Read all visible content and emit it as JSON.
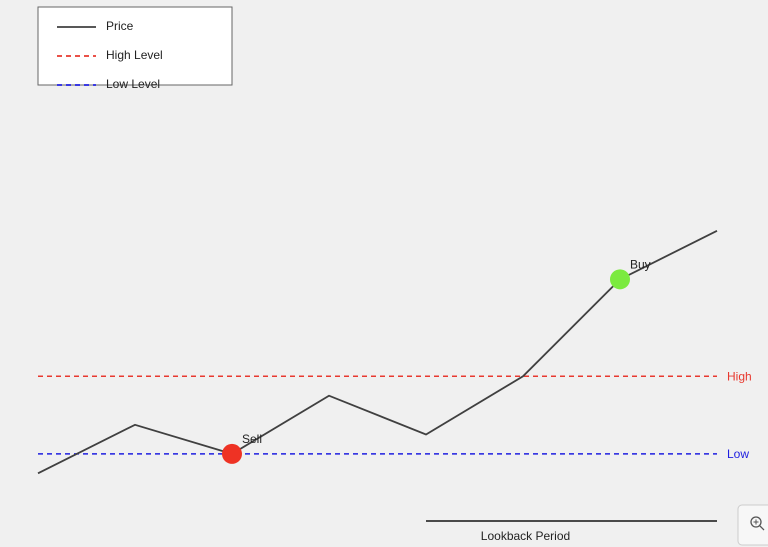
{
  "chart_data": {
    "type": "line",
    "categories": [
      null,
      null,
      null,
      null,
      null,
      null,
      null,
      null
    ],
    "series": [
      {
        "name": "Price",
        "color": "#404040",
        "values": [
          1,
          6,
          3,
          9,
          5,
          11,
          21,
          26
        ]
      }
    ],
    "ylim": [
      -6.6,
      49.8
    ],
    "high_level": {
      "name": "High Level",
      "label": "High",
      "value": 11,
      "color": "#e8392f"
    },
    "low_level": {
      "name": "Low Level",
      "label": "Low",
      "value": 3,
      "color": "#1f1fe0"
    },
    "signals": [
      {
        "label": "Sell",
        "category": 2,
        "value": 3,
        "color": "#ee3224"
      },
      {
        "label": "Buy",
        "category": 6,
        "value": 21,
        "color": "#7bea3f"
      }
    ],
    "lookback": {
      "label": "Lookback Period",
      "start": 4,
      "end": 7
    },
    "legend": "upper left"
  }
}
